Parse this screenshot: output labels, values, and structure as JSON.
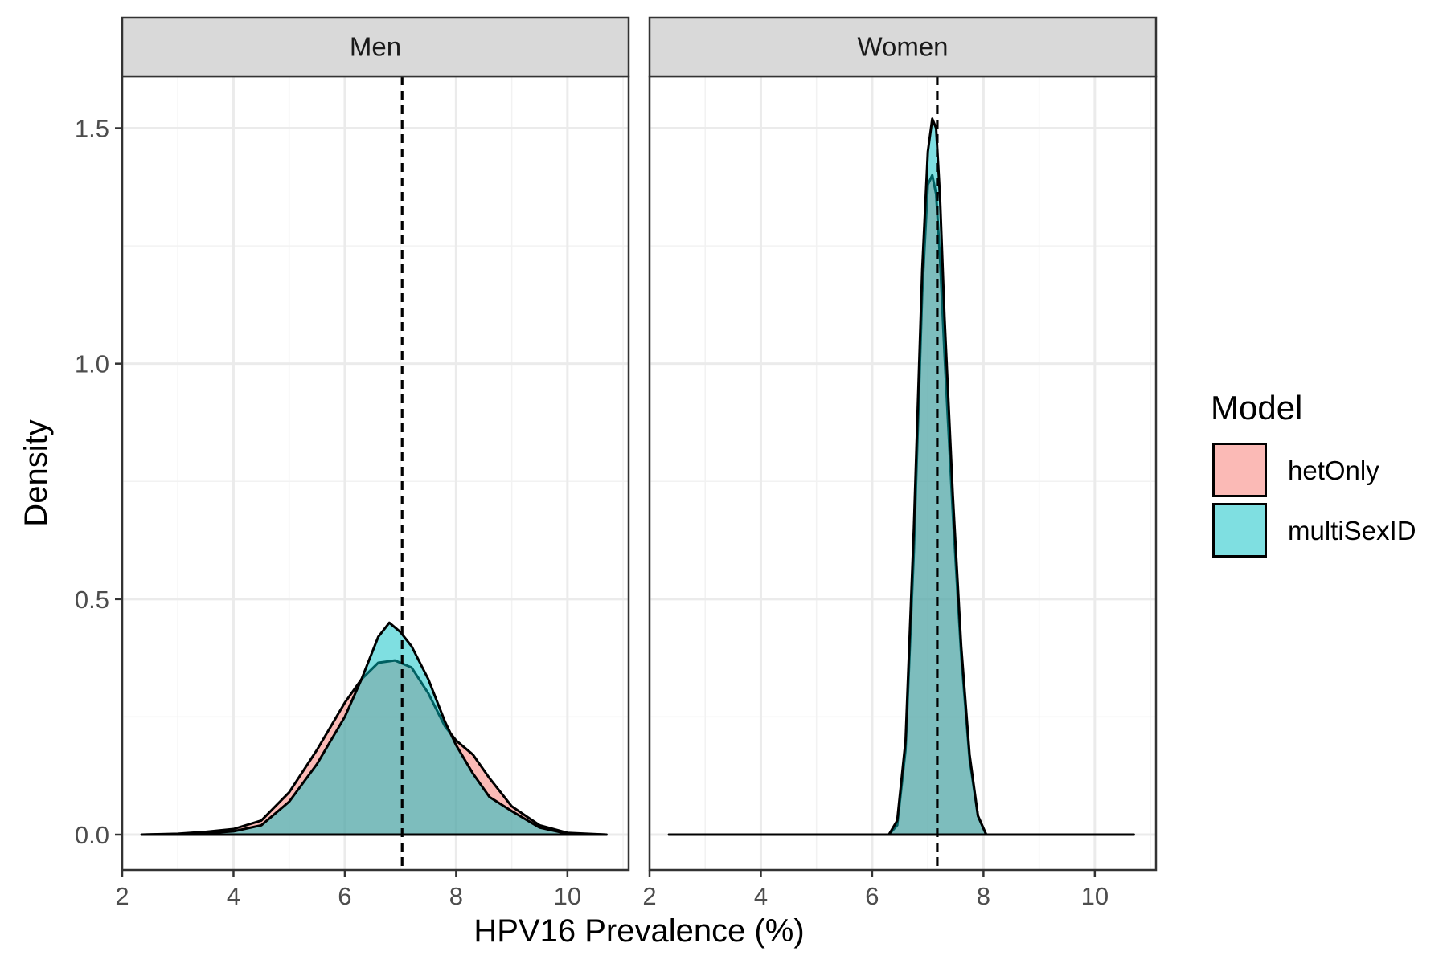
{
  "chart_data": {
    "type": "area",
    "xlabel": "HPV16 Prevalence (%)",
    "ylabel": "Density",
    "xlim": [
      2.0,
      11.1
    ],
    "ylim": [
      -0.075,
      1.61
    ],
    "x_ticks": [
      2,
      4,
      6,
      8,
      10
    ],
    "x_tick_labels": [
      "2",
      "4",
      "6",
      "8",
      "10"
    ],
    "y_ticks": [
      0.0,
      0.5,
      1.0,
      1.5
    ],
    "y_tick_labels": [
      "0.0",
      "0.5",
      "1.0",
      "1.5"
    ],
    "grid": true,
    "legend_position": "right",
    "legend_title": "Model",
    "series_info": [
      {
        "name": "hetOnly",
        "color": "#F8766D"
      },
      {
        "name": "multiSexID",
        "color": "#00BFC4"
      }
    ],
    "panels": [
      {
        "label": "Men",
        "vline": 7.03,
        "series": [
          {
            "name": "hetOnly",
            "x": [
              2.35,
              3.0,
              3.5,
              4.0,
              4.5,
              5.0,
              5.5,
              6.0,
              6.3,
              6.6,
              6.9,
              7.2,
              7.5,
              7.8,
              8.0,
              8.3,
              8.6,
              9.0,
              9.5,
              10.0,
              10.7
            ],
            "y": [
              0.0,
              0.002,
              0.006,
              0.012,
              0.03,
              0.09,
              0.18,
              0.28,
              0.33,
              0.365,
              0.37,
              0.355,
              0.3,
              0.23,
              0.2,
              0.17,
              0.12,
              0.06,
              0.02,
              0.004,
              0.0
            ]
          },
          {
            "name": "multiSexID",
            "x": [
              2.35,
              3.0,
              3.5,
              4.0,
              4.5,
              5.0,
              5.5,
              6.0,
              6.3,
              6.6,
              6.8,
              7.0,
              7.2,
              7.5,
              7.8,
              8.0,
              8.3,
              8.6,
              9.0,
              9.5,
              10.0,
              10.7
            ],
            "y": [
              0.0,
              0.001,
              0.003,
              0.007,
              0.02,
              0.07,
              0.15,
              0.25,
              0.33,
              0.42,
              0.45,
              0.43,
              0.4,
              0.33,
              0.24,
              0.19,
              0.13,
              0.08,
              0.05,
              0.015,
              0.002,
              0.0
            ]
          }
        ]
      },
      {
        "label": "Women",
        "vline": 7.17,
        "series": [
          {
            "name": "hetOnly",
            "x": [
              2.35,
              6.3,
              6.45,
              6.6,
              6.75,
              6.9,
              7.0,
              7.08,
              7.15,
              7.22,
              7.3,
              7.45,
              7.6,
              7.75,
              7.9,
              8.05,
              10.7
            ],
            "y": [
              0.0,
              0.0,
              0.02,
              0.18,
              0.6,
              1.15,
              1.38,
              1.4,
              1.36,
              1.22,
              1.02,
              0.68,
              0.38,
              0.16,
              0.04,
              0.0,
              0.0
            ]
          },
          {
            "name": "multiSexID",
            "x": [
              2.35,
              6.3,
              6.45,
              6.6,
              6.75,
              6.9,
              7.0,
              7.08,
              7.15,
              7.22,
              7.3,
              7.45,
              7.6,
              7.75,
              7.9,
              8.05,
              10.7
            ],
            "y": [
              0.0,
              0.0,
              0.03,
              0.2,
              0.65,
              1.2,
              1.45,
              1.52,
              1.5,
              1.35,
              1.1,
              0.72,
              0.4,
              0.17,
              0.04,
              0.0,
              0.0
            ]
          }
        ]
      }
    ]
  }
}
